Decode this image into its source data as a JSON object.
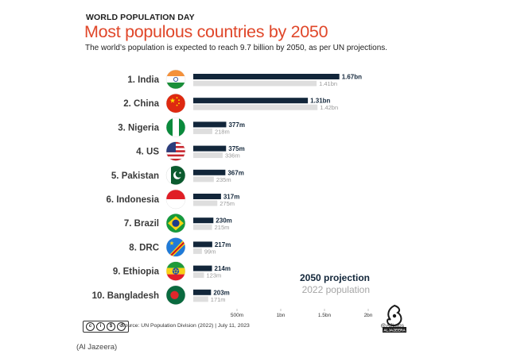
{
  "header": {
    "kicker": "WORLD POPULATION DAY",
    "title": "Most populous countries by 2050",
    "subtitle": "The world’s population is expected to reach 9.7 billion by 2050, as per UN projections."
  },
  "chart_data": {
    "type": "bar",
    "orientation": "horizontal",
    "unit": "population",
    "xlim": [
      0,
      2000000000
    ],
    "xticks": [
      {
        "value": 500000000,
        "label": "500m"
      },
      {
        "value": 1000000000,
        "label": "1bn"
      },
      {
        "value": 1500000000,
        "label": "1.5bn"
      },
      {
        "value": 2000000000,
        "label": "2bn"
      }
    ],
    "categories": [
      "1. India",
      "2. China",
      "3. Nigeria",
      "4. US",
      "5. Pakistan",
      "6. Indonesia",
      "7. Brazil",
      "8. DRC",
      "9. Ethiopia",
      "10. Bangladesh"
    ],
    "flags": [
      "india",
      "china",
      "nigeria",
      "us",
      "pakistan",
      "indonesia",
      "brazil",
      "drc",
      "ethiopia",
      "bangladesh"
    ],
    "series": [
      {
        "name": "2050 projection",
        "color": "#12263a",
        "values": [
          1670000000,
          1310000000,
          377000000,
          375000000,
          367000000,
          317000000,
          230000000,
          217000000,
          214000000,
          203000000
        ],
        "labels": [
          "1.67bn",
          "1.31bn",
          "377m",
          "375m",
          "367m",
          "317m",
          "230m",
          "217m",
          "214m",
          "203m"
        ]
      },
      {
        "name": "2022 population",
        "color": "#dedede",
        "values": [
          1410000000,
          1420000000,
          218000000,
          336000000,
          235000000,
          275000000,
          215000000,
          99000000,
          123000000,
          171000000
        ],
        "labels": [
          "1.41bn",
          "1.42bn",
          "218m",
          "336m",
          "235m",
          "275m",
          "215m",
          "99m",
          "123m",
          "171m"
        ]
      }
    ],
    "legend_position": "bottom-right"
  },
  "colors": {
    "title": "#e0472a",
    "projection": "#12263a",
    "current": "#dedede",
    "current_label": "#9a9a9a",
    "category_label": "#3a3a3a"
  },
  "footer": {
    "cc": "cc by nc sa",
    "source": "Source: UN Population Division (2022)  |  July 11, 2023",
    "handle": "@AJLabs",
    "logo_text": "ALJAZEERA"
  },
  "credit": "(Al Jazeera)"
}
